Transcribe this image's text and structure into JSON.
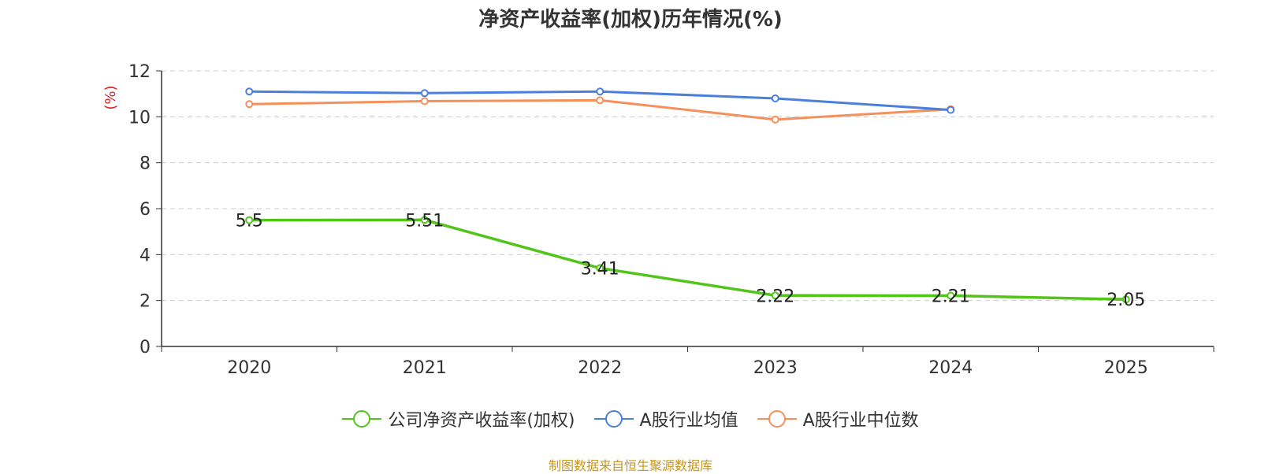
{
  "chart_data": {
    "type": "line",
    "title": "净资产收益率(加权)历年情况(%)",
    "ylabel": "(%)",
    "ylim": [
      0,
      12
    ],
    "yticks": [
      "0",
      "2",
      "4",
      "6",
      "8",
      "10",
      "12"
    ],
    "categories": [
      "2020",
      "2021",
      "2022",
      "2023",
      "2024",
      "2025"
    ],
    "grid": true,
    "legend_position": "bottom",
    "series": [
      {
        "name": "公司净资产收益率(加权)",
        "color": "#52c41a",
        "values": [
          5.5,
          5.51,
          3.41,
          2.22,
          2.21,
          2.05
        ],
        "labels": [
          "5.5",
          "5.51",
          "3.41",
          "2.22",
          "2.21",
          "2.05"
        ]
      },
      {
        "name": "A股行业均值",
        "color": "#4a7fdc",
        "values": [
          11.1,
          11.03,
          11.1,
          10.8,
          10.3,
          null
        ]
      },
      {
        "name": "A股行业中位数",
        "color": "#f5905b",
        "values": [
          10.55,
          10.68,
          10.72,
          9.88,
          10.33,
          null
        ]
      }
    ]
  },
  "footer": {
    "source": "制图数据来自恒生聚源数据库"
  }
}
